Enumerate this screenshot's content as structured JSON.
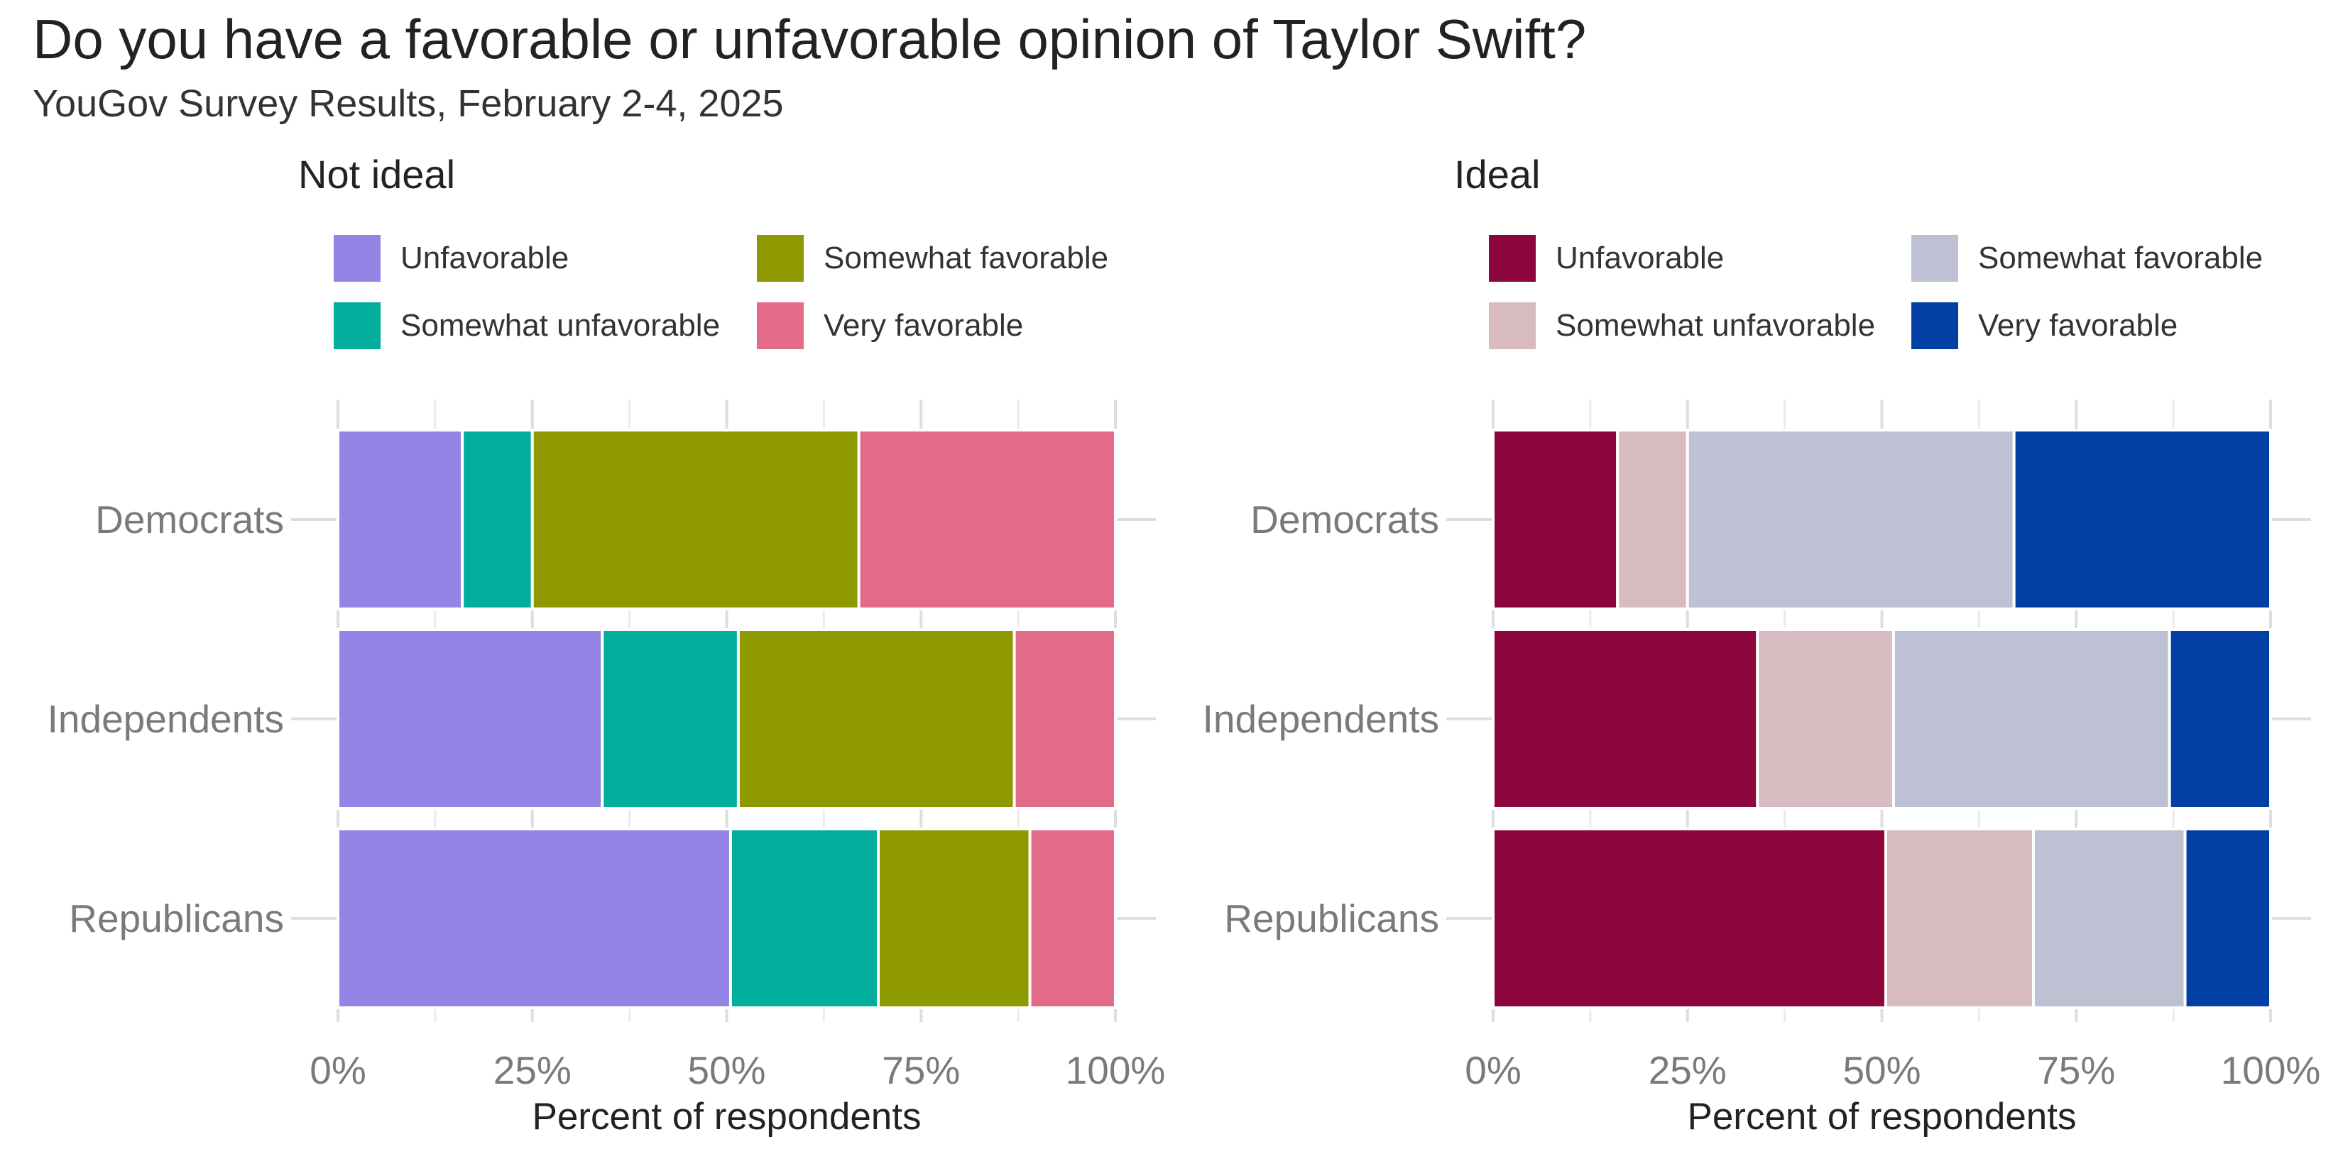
{
  "title": "Do you have a favorable or unfavorable opinion of Taylor Swift?",
  "subtitle": "YouGov Survey Results, February 2-4, 2025",
  "chart_data": [
    {
      "type": "bar",
      "orientation": "horizontal",
      "stacked": true,
      "panel_title": "Not ideal",
      "categories": [
        "Democrats",
        "Independents",
        "Republicans"
      ],
      "series": [
        {
          "name": "Unfavorable",
          "color": "#9385E6",
          "values": [
            16,
            34,
            50.5
          ]
        },
        {
          "name": "Somewhat unfavorable",
          "color": "#00AE9B",
          "values": [
            9,
            17.5,
            19
          ]
        },
        {
          "name": "Somewhat favorable",
          "color": "#8E9900",
          "values": [
            42,
            35.5,
            19.5
          ]
        },
        {
          "name": "Very favorable",
          "color": "#E26B87",
          "values": [
            33,
            13,
            11
          ]
        }
      ],
      "xlabel": "Percent of respondents",
      "xlim": [
        0,
        100
      ],
      "xticks": [
        "0%",
        "25%",
        "50%",
        "75%",
        "100%"
      ],
      "legend_position": "top"
    },
    {
      "type": "bar",
      "orientation": "horizontal",
      "stacked": true,
      "panel_title": "Ideal",
      "categories": [
        "Democrats",
        "Independents",
        "Republicans"
      ],
      "series": [
        {
          "name": "Unfavorable",
          "color": "#8C063D",
          "values": [
            16,
            34,
            50.5
          ]
        },
        {
          "name": "Somewhat unfavorable",
          "color": "#D8BBC0",
          "values": [
            9,
            17.5,
            19
          ]
        },
        {
          "name": "Somewhat favorable",
          "color": "#BEC1D4",
          "values": [
            42,
            35.5,
            19.5
          ]
        },
        {
          "name": "Very favorable",
          "color": "#023FA5",
          "values": [
            33,
            13,
            11
          ]
        }
      ],
      "xlabel": "Percent of respondents",
      "xlim": [
        0,
        100
      ],
      "xticks": [
        "0%",
        "25%",
        "50%",
        "75%",
        "100%"
      ],
      "legend_position": "top"
    }
  ]
}
